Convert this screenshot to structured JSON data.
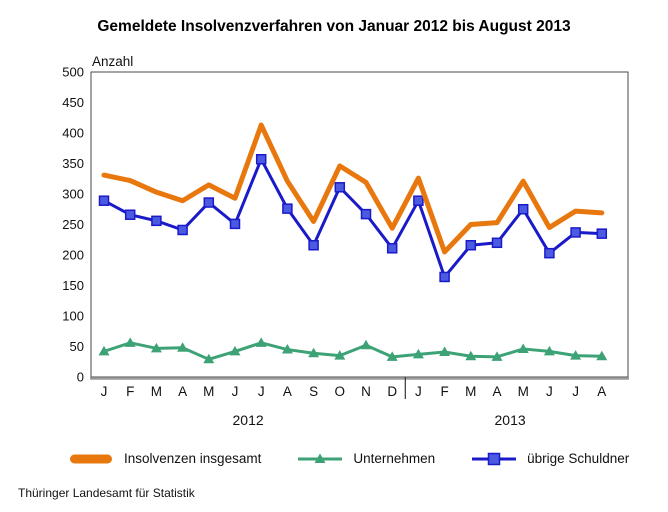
{
  "title": "Gemeldete Insolvenzverfahren von Januar 2012 bis August 2013",
  "footer": "Thüringer Landesamt für Statistik",
  "chart_data": {
    "type": "line",
    "title": "Gemeldete Insolvenzverfahren von Januar 2012 bis August 2013",
    "xlabel": "",
    "ylabel": "Anzahl",
    "ylim": [
      0,
      500
    ],
    "ytick_step": 50,
    "grid": false,
    "legend_position": "bottom",
    "categories": [
      "J",
      "F",
      "M",
      "A",
      "M",
      "J",
      "J",
      "A",
      "S",
      "O",
      "N",
      "D",
      "J",
      "F",
      "M",
      "A",
      "M",
      "J",
      "J",
      "A"
    ],
    "year_groups": [
      {
        "label": "2012",
        "span": [
          0,
          11
        ]
      },
      {
        "label": "2013",
        "span": [
          12,
          19
        ]
      }
    ],
    "series": [
      {
        "name": "Insolvenzen insgesamt",
        "color": "#E8780E",
        "marker": "none",
        "width": 5,
        "values": [
          331,
          322,
          303,
          289,
          315,
          293,
          413,
          321,
          255,
          346,
          319,
          244,
          326,
          205,
          250,
          253,
          321,
          245,
          272,
          269
        ]
      },
      {
        "name": "Unternehmen",
        "color": "#3DA276",
        "marker": "triangle",
        "width": 3,
        "values": [
          42,
          56,
          47,
          48,
          29,
          42,
          56,
          45,
          39,
          35,
          52,
          33,
          37,
          41,
          34,
          33,
          46,
          42,
          35,
          34
        ]
      },
      {
        "name": "übrige Schuldner",
        "color": "#1A1AC8",
        "marker": "square",
        "marker_fill": "#4A5BE2",
        "width": 3,
        "values": [
          289,
          266,
          256,
          241,
          286,
          251,
          357,
          276,
          216,
          311,
          267,
          211,
          289,
          164,
          216,
          220,
          275,
          203,
          237,
          235
        ]
      }
    ]
  }
}
